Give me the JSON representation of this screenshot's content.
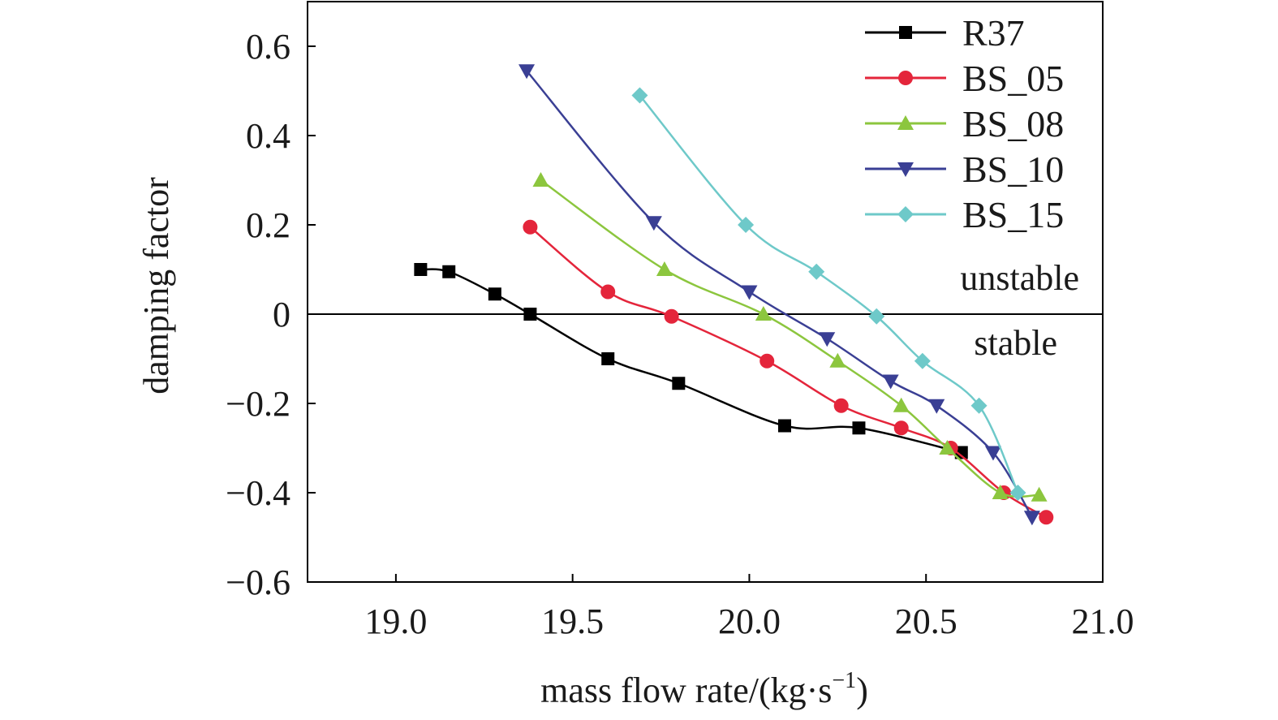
{
  "chart_data": {
    "type": "line",
    "title": "",
    "xlabel": "mass flow rate/(kg·s",
    "xlabel_sup": "−1",
    "xlabel_close": ")",
    "ylabel": "damping factor",
    "xlim": [
      18.75,
      21.0
    ],
    "ylim": [
      -0.6,
      0.7
    ],
    "xticks": [
      19.0,
      19.5,
      20.0,
      20.5,
      21.0
    ],
    "xtick_labels": [
      "19.0",
      "19.5",
      "20.0",
      "20.5",
      "21.0"
    ],
    "yticks": [
      0.6,
      0.4,
      0.2,
      0,
      -0.2,
      -0.4,
      -0.6
    ],
    "ytick_labels": [
      "0.6",
      "0.4",
      "0.2",
      "0",
      "−0.2",
      "−0.4",
      "−0.6"
    ],
    "reference_line": 0,
    "annotations": [
      "unstable",
      "stable"
    ],
    "legend_position": "top-right",
    "grid": false,
    "series": [
      {
        "name": "R37",
        "color": "#000000",
        "marker": "square",
        "x": [
          19.07,
          19.15,
          19.28,
          19.38,
          19.6,
          19.8,
          20.1,
          20.31,
          20.6
        ],
        "y": [
          0.1,
          0.095,
          0.045,
          0.0,
          -0.1,
          -0.155,
          -0.25,
          -0.255,
          -0.31
        ]
      },
      {
        "name": "BS_05",
        "color": "#e4253b",
        "marker": "circle",
        "x": [
          19.38,
          19.6,
          19.78,
          20.05,
          20.26,
          20.43,
          20.57,
          20.72,
          20.84
        ],
        "y": [
          0.195,
          0.05,
          -0.005,
          -0.105,
          -0.205,
          -0.255,
          -0.3,
          -0.4,
          -0.455
        ]
      },
      {
        "name": "BS_08",
        "color": "#8cc63e",
        "marker": "triangle-up",
        "x": [
          19.41,
          19.76,
          20.04,
          20.25,
          20.43,
          20.56,
          20.71,
          20.82
        ],
        "y": [
          0.3,
          0.1,
          0.0,
          -0.105,
          -0.205,
          -0.3,
          -0.4,
          -0.405
        ]
      },
      {
        "name": "BS_10",
        "color": "#3a3f94",
        "marker": "triangle-down",
        "x": [
          19.37,
          19.73,
          20.0,
          20.22,
          20.4,
          20.53,
          20.69,
          20.8
        ],
        "y": [
          0.545,
          0.205,
          0.05,
          -0.055,
          -0.15,
          -0.205,
          -0.31,
          -0.455
        ]
      },
      {
        "name": "BS_15",
        "color": "#6ec9c9",
        "marker": "diamond",
        "x": [
          19.69,
          19.99,
          20.19,
          20.36,
          20.49,
          20.65,
          20.76
        ],
        "y": [
          0.49,
          0.2,
          0.095,
          -0.005,
          -0.105,
          -0.205,
          -0.4
        ]
      }
    ]
  }
}
